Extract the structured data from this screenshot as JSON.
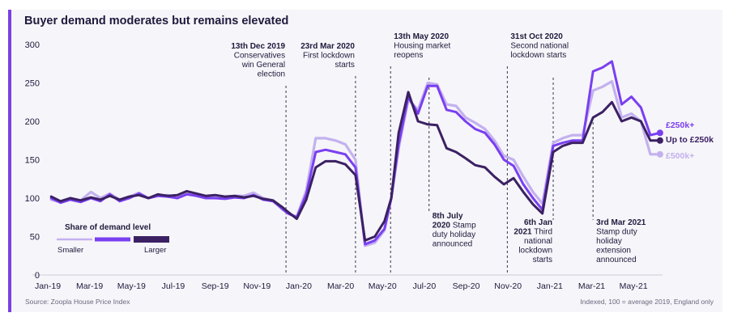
{
  "title": "Buyer demand moderates but remains elevated",
  "source": "Source: Zoopla House Price Index",
  "note": "Indexed, 100 = average 2019, England only",
  "legend": {
    "title": "Share of demand level",
    "smaller": "Smaller",
    "larger": "Larger"
  },
  "colors": {
    "under250": "#3b2163",
    "over250": "#7a3ff0",
    "over500": "#c3b1ef",
    "axis": "#cfcbd8",
    "event_line": "#3b3550"
  },
  "chart_data": {
    "type": "line",
    "title": "Buyer demand moderates but remains elevated",
    "xlabel": "",
    "ylabel": "",
    "ylim": [
      0,
      300
    ],
    "yticks": [
      0,
      50,
      100,
      150,
      200,
      250,
      300
    ],
    "xlim": [
      "2019-01",
      "2021-06"
    ],
    "xticks": [
      "Jan-19",
      "Mar-19",
      "May-19",
      "Jul-19",
      "Sep-19",
      "Nov-19",
      "Jan-20",
      "Mar-20",
      "May-20",
      "Jul-20",
      "Sep-20",
      "Nov-20",
      "Jan-21",
      "Mar-21",
      "May-21"
    ],
    "grid": false,
    "series": [
      {
        "name": "Up to £250k",
        "color": "#3b2163",
        "points": [
          [
            "2019-01-06",
            102
          ],
          [
            "2019-01-20",
            96
          ],
          [
            "2019-02-03",
            100
          ],
          [
            "2019-02-17",
            97
          ],
          [
            "2019-03-03",
            101
          ],
          [
            "2019-03-17",
            98
          ],
          [
            "2019-03-31",
            103
          ],
          [
            "2019-04-14",
            98
          ],
          [
            "2019-04-28",
            102
          ],
          [
            "2019-05-12",
            104
          ],
          [
            "2019-05-26",
            100
          ],
          [
            "2019-06-09",
            105
          ],
          [
            "2019-06-23",
            103
          ],
          [
            "2019-07-07",
            104
          ],
          [
            "2019-07-21",
            109
          ],
          [
            "2019-08-04",
            106
          ],
          [
            "2019-08-18",
            103
          ],
          [
            "2019-09-01",
            104
          ],
          [
            "2019-09-15",
            102
          ],
          [
            "2019-09-29",
            103
          ],
          [
            "2019-10-13",
            101
          ],
          [
            "2019-10-27",
            103
          ],
          [
            "2019-11-10",
            99
          ],
          [
            "2019-11-24",
            97
          ],
          [
            "2019-12-08",
            88
          ],
          [
            "2019-12-16",
            82
          ],
          [
            "2019-12-29",
            73
          ],
          [
            "2020-01-12",
            98
          ],
          [
            "2020-01-26",
            140
          ],
          [
            "2020-02-09",
            148
          ],
          [
            "2020-02-23",
            148
          ],
          [
            "2020-03-08",
            144
          ],
          [
            "2020-03-23",
            130
          ],
          [
            "2020-04-06",
            45
          ],
          [
            "2020-04-20",
            50
          ],
          [
            "2020-05-04",
            70
          ],
          [
            "2020-05-14",
            100
          ],
          [
            "2020-05-25",
            185
          ],
          [
            "2020-06-08",
            238
          ],
          [
            "2020-06-22",
            200
          ],
          [
            "2020-07-06",
            196
          ],
          [
            "2020-07-20",
            195
          ],
          [
            "2020-08-03",
            165
          ],
          [
            "2020-08-17",
            160
          ],
          [
            "2020-08-31",
            152
          ],
          [
            "2020-09-14",
            143
          ],
          [
            "2020-09-28",
            140
          ],
          [
            "2020-10-12",
            128
          ],
          [
            "2020-10-26",
            118
          ],
          [
            "2020-11-09",
            126
          ],
          [
            "2020-11-23",
            108
          ],
          [
            "2020-12-07",
            92
          ],
          [
            "2020-12-21",
            80
          ],
          [
            "2021-01-06",
            160
          ],
          [
            "2021-01-20",
            168
          ],
          [
            "2021-02-03",
            172
          ],
          [
            "2021-02-17",
            172
          ],
          [
            "2021-03-03",
            205
          ],
          [
            "2021-03-17",
            212
          ],
          [
            "2021-03-31",
            225
          ],
          [
            "2021-04-14",
            200
          ],
          [
            "2021-04-28",
            205
          ],
          [
            "2021-05-12",
            200
          ],
          [
            "2021-05-26",
            175
          ],
          [
            "2021-06-09",
            175
          ]
        ]
      },
      {
        "name": "£250k+",
        "color": "#7a3ff0",
        "points": [
          [
            "2019-01-06",
            100
          ],
          [
            "2019-01-20",
            94
          ],
          [
            "2019-02-03",
            98
          ],
          [
            "2019-02-17",
            95
          ],
          [
            "2019-03-03",
            100
          ],
          [
            "2019-03-17",
            96
          ],
          [
            "2019-03-31",
            105
          ],
          [
            "2019-04-14",
            96
          ],
          [
            "2019-04-28",
            100
          ],
          [
            "2019-05-12",
            106
          ],
          [
            "2019-05-26",
            100
          ],
          [
            "2019-06-09",
            103
          ],
          [
            "2019-06-23",
            102
          ],
          [
            "2019-07-07",
            100
          ],
          [
            "2019-07-21",
            105
          ],
          [
            "2019-08-04",
            103
          ],
          [
            "2019-08-18",
            100
          ],
          [
            "2019-09-01",
            100
          ],
          [
            "2019-09-15",
            99
          ],
          [
            "2019-09-29",
            101
          ],
          [
            "2019-10-13",
            100
          ],
          [
            "2019-10-27",
            104
          ],
          [
            "2019-11-10",
            98
          ],
          [
            "2019-11-24",
            96
          ],
          [
            "2019-12-08",
            86
          ],
          [
            "2019-12-16",
            80
          ],
          [
            "2019-12-29",
            75
          ],
          [
            "2020-01-12",
            105
          ],
          [
            "2020-01-26",
            160
          ],
          [
            "2020-02-09",
            163
          ],
          [
            "2020-02-23",
            160
          ],
          [
            "2020-03-08",
            157
          ],
          [
            "2020-03-23",
            140
          ],
          [
            "2020-04-06",
            40
          ],
          [
            "2020-04-20",
            45
          ],
          [
            "2020-05-04",
            60
          ],
          [
            "2020-05-14",
            100
          ],
          [
            "2020-05-25",
            170
          ],
          [
            "2020-06-08",
            232
          ],
          [
            "2020-06-22",
            210
          ],
          [
            "2020-07-06",
            246
          ],
          [
            "2020-07-20",
            246
          ],
          [
            "2020-08-03",
            215
          ],
          [
            "2020-08-17",
            212
          ],
          [
            "2020-08-31",
            200
          ],
          [
            "2020-09-14",
            190
          ],
          [
            "2020-09-28",
            185
          ],
          [
            "2020-10-12",
            170
          ],
          [
            "2020-10-26",
            150
          ],
          [
            "2020-11-09",
            142
          ],
          [
            "2020-11-23",
            118
          ],
          [
            "2020-12-07",
            100
          ],
          [
            "2020-12-21",
            85
          ],
          [
            "2021-01-06",
            168
          ],
          [
            "2021-01-20",
            172
          ],
          [
            "2021-02-03",
            175
          ],
          [
            "2021-02-17",
            175
          ],
          [
            "2021-03-03",
            265
          ],
          [
            "2021-03-17",
            270
          ],
          [
            "2021-03-31",
            278
          ],
          [
            "2021-04-14",
            222
          ],
          [
            "2021-04-28",
            232
          ],
          [
            "2021-05-12",
            218
          ],
          [
            "2021-05-26",
            182
          ],
          [
            "2021-06-09",
            185
          ]
        ]
      },
      {
        "name": "£500k+",
        "color": "#c3b1ef",
        "points": [
          [
            "2019-01-06",
            98
          ],
          [
            "2019-01-20",
            95
          ],
          [
            "2019-02-03",
            100
          ],
          [
            "2019-02-17",
            97
          ],
          [
            "2019-03-03",
            108
          ],
          [
            "2019-03-17",
            100
          ],
          [
            "2019-03-31",
            106
          ],
          [
            "2019-04-14",
            98
          ],
          [
            "2019-04-28",
            102
          ],
          [
            "2019-05-12",
            107
          ],
          [
            "2019-05-26",
            100
          ],
          [
            "2019-06-09",
            103
          ],
          [
            "2019-06-23",
            104
          ],
          [
            "2019-07-07",
            100
          ],
          [
            "2019-07-21",
            108
          ],
          [
            "2019-08-04",
            104
          ],
          [
            "2019-08-18",
            101
          ],
          [
            "2019-09-01",
            103
          ],
          [
            "2019-09-15",
            100
          ],
          [
            "2019-09-29",
            103
          ],
          [
            "2019-10-13",
            103
          ],
          [
            "2019-10-27",
            107
          ],
          [
            "2019-11-10",
            100
          ],
          [
            "2019-11-24",
            97
          ],
          [
            "2019-12-08",
            85
          ],
          [
            "2019-12-16",
            80
          ],
          [
            "2019-12-29",
            76
          ],
          [
            "2020-01-12",
            110
          ],
          [
            "2020-01-26",
            178
          ],
          [
            "2020-02-09",
            178
          ],
          [
            "2020-02-23",
            175
          ],
          [
            "2020-03-08",
            170
          ],
          [
            "2020-03-23",
            150
          ],
          [
            "2020-04-06",
            38
          ],
          [
            "2020-04-20",
            42
          ],
          [
            "2020-05-04",
            58
          ],
          [
            "2020-05-14",
            100
          ],
          [
            "2020-05-25",
            165
          ],
          [
            "2020-06-08",
            228
          ],
          [
            "2020-06-22",
            215
          ],
          [
            "2020-07-06",
            250
          ],
          [
            "2020-07-20",
            248
          ],
          [
            "2020-08-03",
            222
          ],
          [
            "2020-08-17",
            220
          ],
          [
            "2020-08-31",
            205
          ],
          [
            "2020-09-14",
            198
          ],
          [
            "2020-09-28",
            190
          ],
          [
            "2020-10-12",
            175
          ],
          [
            "2020-10-26",
            155
          ],
          [
            "2020-11-09",
            150
          ],
          [
            "2020-11-23",
            128
          ],
          [
            "2020-12-07",
            108
          ],
          [
            "2020-12-21",
            93
          ],
          [
            "2021-01-06",
            172
          ],
          [
            "2021-01-20",
            178
          ],
          [
            "2021-02-03",
            182
          ],
          [
            "2021-02-17",
            182
          ],
          [
            "2021-03-03",
            240
          ],
          [
            "2021-03-17",
            245
          ],
          [
            "2021-03-31",
            252
          ],
          [
            "2021-04-14",
            205
          ],
          [
            "2021-04-28",
            210
          ],
          [
            "2021-05-12",
            200
          ],
          [
            "2021-05-26",
            157
          ],
          [
            "2021-06-09",
            157
          ]
        ]
      }
    ],
    "series_labels": [
      "£250k+",
      "Up to £250k",
      "£500k+"
    ],
    "annotations": [
      {
        "date": "2019-12-13",
        "label_bold": "13th Dec 2019",
        "label": "Conservatives win General election",
        "lines": [
          "13th Dec 2019",
          "Conservatives",
          "win General",
          "election"
        ],
        "align": "end"
      },
      {
        "date": "2020-03-23",
        "label_bold": "23rd Mar 2020",
        "label": "First lockdown starts",
        "lines": [
          "23rd Mar 2020",
          "First lockdown",
          "starts"
        ],
        "align": "end"
      },
      {
        "date": "2020-05-13",
        "label_bold": "13th May 2020",
        "label": "Housing market reopens",
        "lines": [
          "13th May 2020",
          "Housing market",
          "reopens"
        ],
        "align": "start"
      },
      {
        "date": "2020-07-08",
        "label_bold": "8th July 2020",
        "label": "Stamp duty holiday announced",
        "lines": [
          "8th July",
          "2020 Stamp",
          "duty holiday",
          "announced"
        ],
        "align": "start",
        "below": true
      },
      {
        "date": "2020-10-31",
        "label_bold": "31st Oct 2020",
        "label": "Second national lockdown starts",
        "lines": [
          "31st Oct 2020",
          "Second national",
          "lockdown starts"
        ],
        "align": "start"
      },
      {
        "date": "2021-01-06",
        "label_bold": "6th Jan 2021",
        "label": "Third national lockdown starts",
        "lines": [
          "6th Jan",
          "2021 Third",
          "national",
          "lockdown",
          "starts"
        ],
        "align": "end",
        "below": true
      },
      {
        "date": "2021-03-03",
        "label_bold": "3rd Mar 2021",
        "label": "Stamp duty holiday extension announced",
        "lines": [
          "3rd Mar 2021",
          "Stamp duty",
          "holiday",
          "extension",
          "announced"
        ],
        "align": "start",
        "below": true
      }
    ]
  }
}
